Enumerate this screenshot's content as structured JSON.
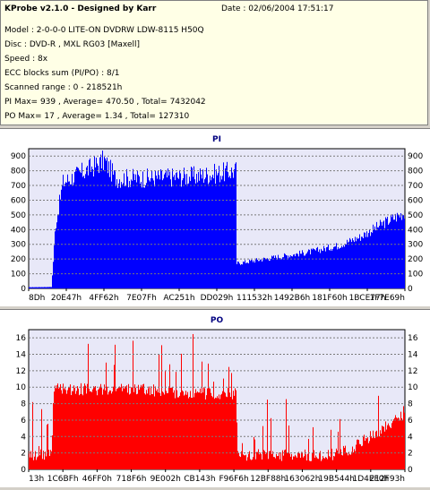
{
  "header": {
    "title": "KProbe v2.1.0 - Designed by Karr",
    "date": "Date : 02/06/2004 17:51:17",
    "lines": [
      "Model : 2-0-0-0 LITE-ON DVDRW LDW-8115   H50Q",
      "Disc : DVD-R , MXL RG03 [Maxell]",
      "Speed : 8x",
      "ECC blocks sum (PI/PO) : 8/1",
      "Scanned range : 0 - 218521h",
      "PI Max= 939 , Average= 470.50 , Total= 7432042",
      "PO Max= 17 , Average= 1.34 , Total= 127310"
    ]
  },
  "colors": {
    "pi_fill": "#0000ff",
    "po_fill": "#ff0000",
    "plot_bg": "#e8e8f8",
    "grid": "#7a7a7a"
  },
  "chart_data": [
    {
      "type": "area",
      "title": "PI",
      "ylim": [
        0,
        950
      ],
      "yticks": [
        0,
        100,
        200,
        300,
        400,
        500,
        600,
        700,
        800,
        900
      ],
      "x_tick_labels": [
        "8Dh",
        "20E47h",
        "4FF62h",
        "7E07Fh",
        "AC251h",
        "DD029h",
        "111532h",
        "1492B6h",
        "181F60h",
        "1BCE77h",
        "1F7E69h"
      ],
      "grid": true,
      "profile": [
        {
          "x": 0.0,
          "y": 8
        },
        {
          "x": 0.06,
          "y": 10
        },
        {
          "x": 0.07,
          "y": 420
        },
        {
          "x": 0.09,
          "y": 720
        },
        {
          "x": 0.15,
          "y": 800
        },
        {
          "x": 0.2,
          "y": 870
        },
        {
          "x": 0.23,
          "y": 750
        },
        {
          "x": 0.32,
          "y": 750
        },
        {
          "x": 0.45,
          "y": 765
        },
        {
          "x": 0.55,
          "y": 800
        },
        {
          "x": 0.551,
          "y": 170
        },
        {
          "x": 0.65,
          "y": 210
        },
        {
          "x": 0.75,
          "y": 250
        },
        {
          "x": 0.82,
          "y": 290
        },
        {
          "x": 0.88,
          "y": 350
        },
        {
          "x": 0.94,
          "y": 440
        },
        {
          "x": 1.0,
          "y": 520
        }
      ],
      "max_label": "939"
    },
    {
      "type": "bar",
      "title": "PO",
      "ylim": [
        0,
        17
      ],
      "yticks": [
        0,
        2,
        4,
        6,
        8,
        10,
        12,
        14,
        16
      ],
      "x_tick_labels": [
        "13h",
        "1C6BFh",
        "46FF0h",
        "718F6h",
        "9E002h",
        "CB143h",
        "F96F6h",
        "12BF88h",
        "163062h",
        "19B544h",
        "1D4EF0h",
        "212F93h"
      ],
      "grid": true,
      "profile": [
        {
          "x": 0.0,
          "y": 1
        },
        {
          "x": 0.06,
          "y": 1
        },
        {
          "x": 0.065,
          "y": 9
        },
        {
          "x": 0.3,
          "y": 9
        },
        {
          "x": 0.4,
          "y": 8.5
        },
        {
          "x": 0.55,
          "y": 8.5
        },
        {
          "x": 0.555,
          "y": 1
        },
        {
          "x": 0.8,
          "y": 1
        },
        {
          "x": 0.85,
          "y": 1.5
        },
        {
          "x": 0.9,
          "y": 3
        },
        {
          "x": 1.0,
          "y": 6
        }
      ],
      "max_label": "17"
    }
  ]
}
